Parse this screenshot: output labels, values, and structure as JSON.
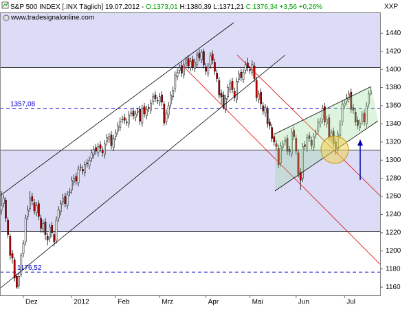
{
  "chart_data": {
    "type": "candlestick",
    "title": "S&P 500 INDEX [.INX  Täglich] 19.07.2012 -",
    "quote_open": "O:1373,01",
    "quote_high": "H:1380,39",
    "quote_low": "L:1371,21",
    "quote_close": "C:1376,34",
    "quote_change": "+3,56",
    "quote_change_pct": "+0,26%",
    "subtitle": "www.tradesignalonline.com",
    "axis_label": "XXP",
    "categories": [
      null,
      null,
      null,
      null,
      null,
      null,
      null,
      null,
      null,
      null,
      "Dez",
      null,
      null,
      null,
      null,
      null,
      null,
      null,
      null,
      null,
      null,
      null,
      null,
      null,
      null,
      null,
      null,
      null,
      null,
      null,
      null,
      null,
      "2012",
      null,
      null,
      null,
      null,
      null,
      null,
      null,
      null,
      null,
      null,
      null,
      null,
      null,
      null,
      null,
      null,
      null,
      null,
      null,
      "Feb",
      null,
      null,
      null,
      null,
      null,
      null,
      null,
      null,
      null,
      null,
      null,
      null,
      null,
      null,
      null,
      null,
      null,
      null,
      null,
      "Mrz",
      null,
      null,
      null,
      null,
      null,
      null,
      null,
      null,
      null,
      null,
      null,
      null,
      null,
      null,
      null,
      null,
      null,
      null,
      null,
      null,
      "Apr",
      null,
      null,
      null,
      null,
      null,
      null,
      null,
      null,
      null,
      null,
      null,
      null,
      null,
      null,
      null,
      null,
      null,
      null,
      null,
      "Mai",
      null,
      null,
      null,
      null,
      null,
      null,
      null,
      null,
      null,
      null,
      null,
      null,
      null,
      null,
      null,
      null,
      null,
      null,
      null,
      null,
      "Jun",
      null,
      null,
      null,
      null,
      null,
      null,
      null,
      null,
      null,
      null,
      null,
      null,
      null,
      null,
      null,
      null,
      null,
      null,
      null,
      null,
      null,
      "Jul",
      null,
      null,
      null,
      null,
      null,
      null,
      null,
      null,
      null,
      null,
      null,
      null
    ],
    "open": [
      1245,
      1252,
      1256,
      1234,
      1216,
      1197,
      1190,
      1172,
      1162,
      1174,
      1197,
      1210,
      1238,
      1247,
      1260,
      1253,
      1242,
      1252,
      1236,
      1224,
      1232,
      1216,
      1214,
      1228,
      1218,
      1212,
      1236,
      1243,
      1254,
      1260,
      1250,
      1264,
      1267,
      1276,
      1282,
      1275,
      1292,
      1290,
      1286,
      1297,
      1294,
      1302,
      1306,
      1314,
      1308,
      1317,
      1311,
      1306,
      1320,
      1323,
      1328,
      1314,
      1326,
      1332,
      1336,
      1345,
      1347,
      1342,
      1340,
      1352,
      1354,
      1347,
      1353,
      1356,
      1341,
      1359,
      1349,
      1358,
      1355,
      1365,
      1372,
      1366,
      1364,
      1372,
      1362,
      1343,
      1350,
      1362,
      1370,
      1379,
      1392,
      1399,
      1404,
      1394,
      1407,
      1412,
      1402,
      1411,
      1401,
      1406,
      1418,
      1411,
      1420,
      1403,
      1396,
      1405,
      1417,
      1408,
      1396,
      1388,
      1374,
      1372,
      1356,
      1370,
      1378,
      1387,
      1376,
      1367,
      1389,
      1397,
      1389,
      1399,
      1407,
      1400,
      1397,
      1404,
      1388,
      1367,
      1375,
      1360,
      1352,
      1356,
      1342,
      1336,
      1326,
      1318,
      1313,
      1297,
      1314,
      1320,
      1324,
      1312,
      1307,
      1333,
      1324,
      1308,
      1287,
      1280,
      1317,
      1313,
      1327,
      1322,
      1314,
      1328,
      1332,
      1340,
      1345,
      1359,
      1340,
      1347,
      1323,
      1332,
      1320,
      1311,
      1327,
      1342,
      1360,
      1365,
      1367,
      1375,
      1358,
      1353,
      1344,
      1336,
      1343,
      1352,
      1340,
      1362,
      1373.01
    ],
    "high": [
      1266,
      1262,
      1259,
      1237,
      1219,
      1201,
      1193,
      1175,
      1176,
      1198,
      1212,
      1240,
      1250,
      1266,
      1264,
      1257,
      1254,
      1256,
      1240,
      1234,
      1236,
      1220,
      1230,
      1232,
      1222,
      1238,
      1249,
      1256,
      1263,
      1264,
      1266,
      1269,
      1282,
      1284,
      1286,
      1294,
      1296,
      1294,
      1299,
      1301,
      1304,
      1312,
      1316,
      1318,
      1319,
      1321,
      1315,
      1322,
      1329,
      1330,
      1332,
      1328,
      1334,
      1342,
      1347,
      1349,
      1351,
      1346,
      1354,
      1356,
      1358,
      1355,
      1358,
      1360,
      1361,
      1363,
      1360,
      1362,
      1367,
      1374,
      1376,
      1370,
      1374,
      1376,
      1365,
      1356,
      1364,
      1376,
      1381,
      1398,
      1401,
      1406,
      1408,
      1409,
      1414,
      1416,
      1413,
      1415,
      1412,
      1420,
      1422,
      1422,
      1423,
      1407,
      1407,
      1419,
      1421,
      1412,
      1400,
      1392,
      1378,
      1376,
      1372,
      1384,
      1389,
      1391,
      1380,
      1391,
      1399,
      1401,
      1401,
      1409,
      1413,
      1404,
      1410,
      1408,
      1392,
      1377,
      1379,
      1364,
      1362,
      1360,
      1346,
      1340,
      1330,
      1322,
      1317,
      1320,
      1322,
      1326,
      1328,
      1316,
      1335,
      1337,
      1328,
      1312,
      1291,
      1319,
      1321,
      1329,
      1331,
      1326,
      1330,
      1334,
      1346,
      1347,
      1361,
      1363,
      1349,
      1351,
      1334,
      1336,
      1324,
      1333,
      1344,
      1366,
      1367,
      1373,
      1377,
      1379,
      1362,
      1357,
      1348,
      1345,
      1354,
      1356,
      1364,
      1377,
      1380.39
    ],
    "low": [
      1240,
      1248,
      1232,
      1214,
      1190,
      1186,
      1166,
      1158,
      1158,
      1171,
      1193,
      1206,
      1234,
      1243,
      1250,
      1240,
      1238,
      1234,
      1220,
      1220,
      1212,
      1206,
      1210,
      1215,
      1205,
      1208,
      1232,
      1239,
      1250,
      1248,
      1246,
      1260,
      1263,
      1272,
      1273,
      1271,
      1288,
      1284,
      1282,
      1292,
      1290,
      1298,
      1302,
      1306,
      1304,
      1309,
      1304,
      1302,
      1316,
      1319,
      1312,
      1310,
      1322,
      1328,
      1332,
      1341,
      1340,
      1338,
      1336,
      1348,
      1345,
      1343,
      1349,
      1339,
      1337,
      1347,
      1345,
      1353,
      1351,
      1361,
      1364,
      1362,
      1360,
      1360,
      1338,
      1339,
      1346,
      1358,
      1366,
      1375,
      1388,
      1395,
      1392,
      1390,
      1403,
      1400,
      1398,
      1399,
      1397,
      1402,
      1409,
      1407,
      1401,
      1394,
      1392,
      1401,
      1406,
      1394,
      1386,
      1368,
      1362,
      1356,
      1352,
      1366,
      1374,
      1374,
      1365,
      1363,
      1385,
      1387,
      1385,
      1395,
      1398,
      1395,
      1393,
      1386,
      1365,
      1363,
      1358,
      1350,
      1348,
      1336,
      1334,
      1320,
      1316,
      1311,
      1291,
      1293,
      1310,
      1316,
      1306,
      1305,
      1303,
      1322,
      1306,
      1281,
      1267,
      1276,
      1311,
      1309,
      1320,
      1312,
      1310,
      1324,
      1328,
      1336,
      1341,
      1338,
      1336,
      1321,
      1319,
      1314,
      1306,
      1307,
      1323,
      1338,
      1356,
      1361,
      1363,
      1352,
      1351,
      1338,
      1334,
      1332,
      1339,
      1338,
      1336,
      1358,
      1371.21
    ],
    "close": [
      1250,
      1258,
      1236,
      1218,
      1195,
      1192,
      1170,
      1160,
      1172,
      1195,
      1208,
      1236,
      1245,
      1258,
      1255,
      1244,
      1250,
      1238,
      1225,
      1230,
      1218,
      1212,
      1226,
      1220,
      1210,
      1234,
      1245,
      1252,
      1258,
      1252,
      1262,
      1265,
      1278,
      1280,
      1277,
      1290,
      1292,
      1288,
      1295,
      1296,
      1300,
      1308,
      1312,
      1310,
      1315,
      1313,
      1308,
      1318,
      1325,
      1326,
      1316,
      1324,
      1330,
      1338,
      1343,
      1345,
      1344,
      1342,
      1350,
      1352,
      1349,
      1351,
      1354,
      1343,
      1357,
      1351,
      1356,
      1357,
      1363,
      1370,
      1368,
      1366,
      1370,
      1364,
      1341,
      1352,
      1360,
      1372,
      1377,
      1394,
      1397,
      1402,
      1396,
      1405,
      1410,
      1404,
      1409,
      1403,
      1408,
      1416,
      1413,
      1419,
      1405,
      1398,
      1403,
      1415,
      1410,
      1398,
      1390,
      1372,
      1370,
      1358,
      1368,
      1380,
      1385,
      1378,
      1369,
      1387,
      1395,
      1391,
      1397,
      1405,
      1402,
      1399,
      1406,
      1390,
      1369,
      1373,
      1362,
      1354,
      1358,
      1340,
      1338,
      1324,
      1320,
      1315,
      1295,
      1316,
      1318,
      1322,
      1310,
      1309,
      1331,
      1326,
      1310,
      1285,
      1278,
      1315,
      1315,
      1325,
      1324,
      1316,
      1326,
      1330,
      1342,
      1343,
      1357,
      1342,
      1345,
      1325,
      1330,
      1318,
      1313,
      1329,
      1340,
      1362,
      1363,
      1369,
      1373,
      1356,
      1355,
      1342,
      1338,
      1341,
      1350,
      1342,
      1360,
      1373,
      1376.34
    ],
    "up_color": "#ffffff",
    "down_color": "#cc0000",
    "wick_color": "#000000",
    "band_color": "#dcdcf6",
    "ylim": [
      1151,
      1463
    ],
    "yticks": [
      1160,
      1180,
      1200,
      1220,
      1240,
      1260,
      1280,
      1300,
      1320,
      1340,
      1360,
      1380,
      1400,
      1420,
      1440
    ],
    "hlines": [
      1402,
      1311,
      1221
    ],
    "levels": [
      {
        "value": 1357.08,
        "label": "1357,08"
      },
      {
        "value": 1176.52,
        "label": "1176,52"
      }
    ],
    "level_color": "#0000cc"
  }
}
